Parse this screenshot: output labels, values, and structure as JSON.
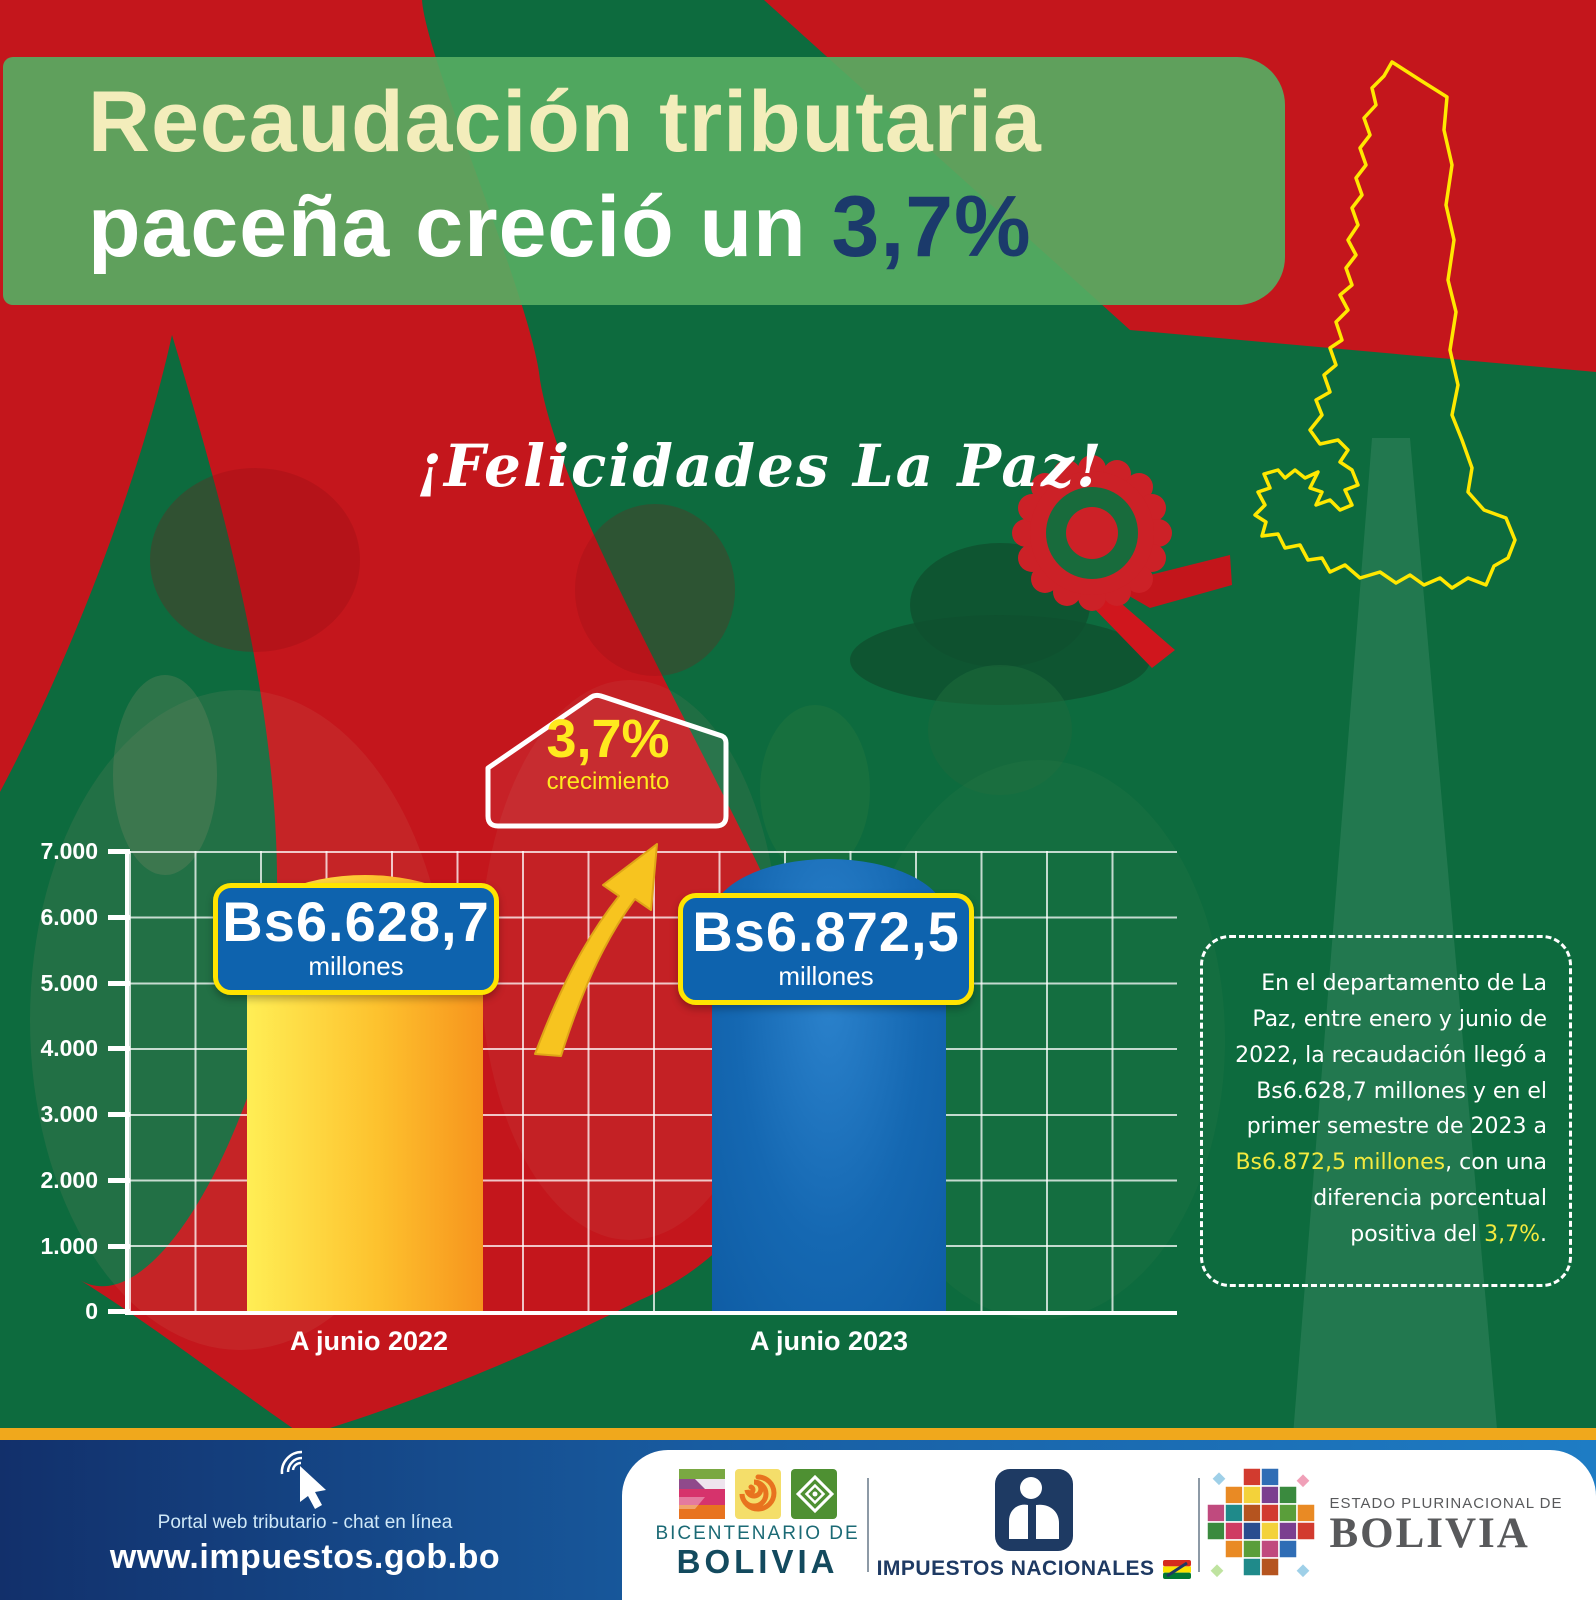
{
  "header": {
    "line1": "Recaudación tributaria",
    "line2_prefix": "paceña creció un ",
    "line2_accent": "3,7%"
  },
  "congrats": "¡Felicidades La Paz!",
  "chart_data": {
    "type": "bar",
    "title": "",
    "categories": [
      "A junio 2022",
      "A junio 2023"
    ],
    "values": [
      6628.7,
      6872.5
    ],
    "bars": [
      {
        "value_text": "Bs6.628,7",
        "unit": "millones"
      },
      {
        "value_text": "Bs6.872,5",
        "unit": "millones"
      }
    ],
    "growth_value": "3,7%",
    "growth_label": "crecimiento",
    "ylim": [
      0,
      7000
    ],
    "yticks": [
      "7.000",
      "6.000",
      "5.000",
      "4.000",
      "3.000",
      "2.000",
      "1.000",
      "0"
    ],
    "grid": true,
    "legend": false,
    "bar_colors": [
      "#ffee55-#f7941d",
      "#1568b2"
    ]
  },
  "infobox": {
    "l1": "En el departamento de La",
    "l2": "Paz, entre enero y junio de",
    "l3": "2022, la recaudación llegó a",
    "l4": "Bs6.628,7 millones y en el",
    "l5": "primer semestre de 2023 a",
    "l6a": "Bs6.872,5 millones",
    "l6b": ", con una",
    "l7": "diferencia porcentual",
    "l8a": "positiva del ",
    "l8b": "3,7%",
    "l8c": "."
  },
  "footer": {
    "tagline": "Portal web tributario - chat en línea",
    "url": "www.impuestos.gob.bo"
  },
  "logos": {
    "bicentenario_top": "BICENTENARIO DE",
    "bicentenario_bottom": "BOLIVIA",
    "impuestos": "IMPUESTOS NACIONALES",
    "estado_top": "ESTADO PLURINACIONAL DE",
    "estado_bottom": "BOLIVIA"
  },
  "colors": {
    "background_red": "#c4161c",
    "background_green": "#0d6b3e",
    "header_green": "#56ac62",
    "accent_navy": "#1b3a6b",
    "accent_yellow": "#ffe400",
    "bar_gradient": [
      "#ffee55",
      "#f7941d"
    ],
    "bar_blue": "#1568b2",
    "footer_orange": "#f0a81c",
    "footer_blue": "#185da2"
  }
}
